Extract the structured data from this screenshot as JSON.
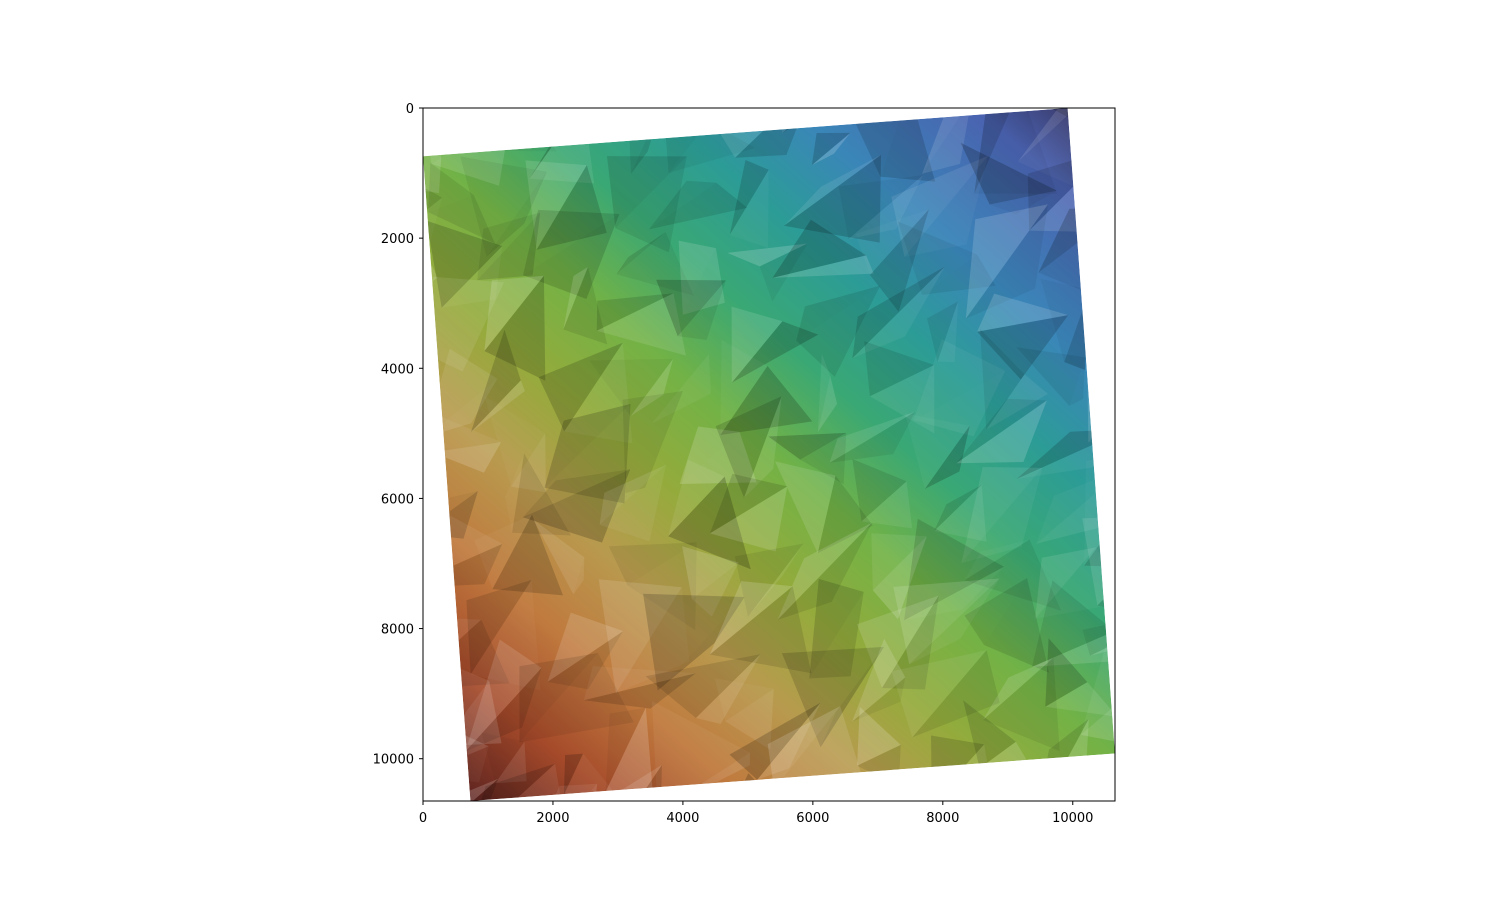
{
  "chart_data": {
    "type": "heatmap",
    "title": "",
    "xlabel": "",
    "ylabel": "",
    "xlim": [
      0,
      10650
    ],
    "ylim": [
      10650,
      0
    ],
    "y_axis_inverted": true,
    "grid": false,
    "legend": "none",
    "x_ticks": [
      0,
      2000,
      4000,
      6000,
      8000,
      10000
    ],
    "y_ticks": [
      0,
      2000,
      4000,
      6000,
      8000,
      10000
    ],
    "x_tick_labels": [
      "0",
      "2000",
      "4000",
      "6000",
      "8000",
      "10000"
    ],
    "y_tick_labels": [
      "0",
      "2000",
      "4000",
      "6000",
      "8000",
      "10000"
    ],
    "raster_corners": [
      {
        "x": 0,
        "y": 740
      },
      {
        "x": 9920,
        "y": 0
      },
      {
        "x": 10650,
        "y": 9920
      },
      {
        "x": 730,
        "y": 10650
      }
    ],
    "colormap": "terrain-like (dark blue top-right → teal → green → olive → orange → dark red bottom-left)",
    "shading": "faceted triangular hillshade",
    "colors": {
      "top_right": "#3f4a8a",
      "upper": "#2a9b8e",
      "middle": "#7db442",
      "lower": "#c8884a",
      "bottom_left": "#6b2a22"
    }
  }
}
